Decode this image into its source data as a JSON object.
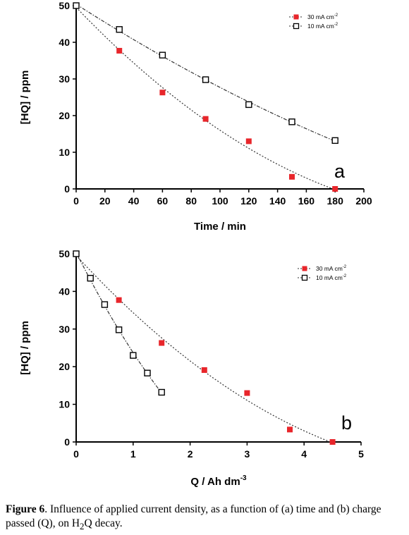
{
  "chart_data": [
    {
      "type": "scatter",
      "panel_label": "a",
      "xlabel": "Time / min",
      "ylabel": "[HQ] / ppm",
      "xlim": [
        0,
        200
      ],
      "ylim": [
        0,
        50
      ],
      "xticks": [
        0,
        20,
        40,
        60,
        80,
        100,
        120,
        140,
        160,
        180,
        200
      ],
      "yticks": [
        0,
        10,
        20,
        30,
        40,
        50
      ],
      "legend_position": "top-right",
      "series": [
        {
          "name": "30 mA cm",
          "name_sup": "-2",
          "marker": "filled-square",
          "color": "#e8262b",
          "x": [
            0,
            30,
            60,
            90,
            120,
            150,
            180
          ],
          "y": [
            50,
            37.7,
            26.3,
            19.1,
            13.0,
            3.3,
            0
          ]
        },
        {
          "name": "10 mA cm",
          "name_sup": "-2",
          "marker": "open-square",
          "color": "#000000",
          "x": [
            0,
            30,
            60,
            90,
            120,
            150,
            180
          ],
          "y": [
            50,
            43.5,
            36.5,
            29.8,
            23.0,
            18.3,
            13.2
          ]
        }
      ]
    },
    {
      "type": "scatter",
      "panel_label": "b",
      "xlabel": "Q / Ah dm",
      "xlabel_sup": "-3",
      "ylabel": "[HQ] / ppm",
      "xlim": [
        0,
        5
      ],
      "ylim": [
        0,
        50
      ],
      "xticks": [
        0,
        1,
        2,
        3,
        4,
        5
      ],
      "yticks": [
        0,
        10,
        20,
        30,
        40,
        50
      ],
      "legend_position": "top-right",
      "series": [
        {
          "name": "30 mA cm",
          "name_sup": "-2",
          "marker": "filled-square",
          "color": "#e8262b",
          "x": [
            0,
            0.75,
            1.5,
            2.25,
            3.0,
            3.75,
            4.5
          ],
          "y": [
            50,
            37.7,
            26.3,
            19.1,
            13.0,
            3.3,
            0
          ]
        },
        {
          "name": "10 mA cm",
          "name_sup": "-2",
          "marker": "open-square",
          "color": "#000000",
          "x": [
            0,
            0.25,
            0.5,
            0.75,
            1.0,
            1.25,
            1.5
          ],
          "y": [
            50,
            43.5,
            36.5,
            29.8,
            23.0,
            18.3,
            13.2
          ]
        }
      ]
    }
  ],
  "caption": {
    "label": "Figure 6",
    "text_1": ". Influence of applied current density, as a function of (a) time and (b) charge passed (Q), on H",
    "sub": "2",
    "text_2": "Q decay."
  }
}
